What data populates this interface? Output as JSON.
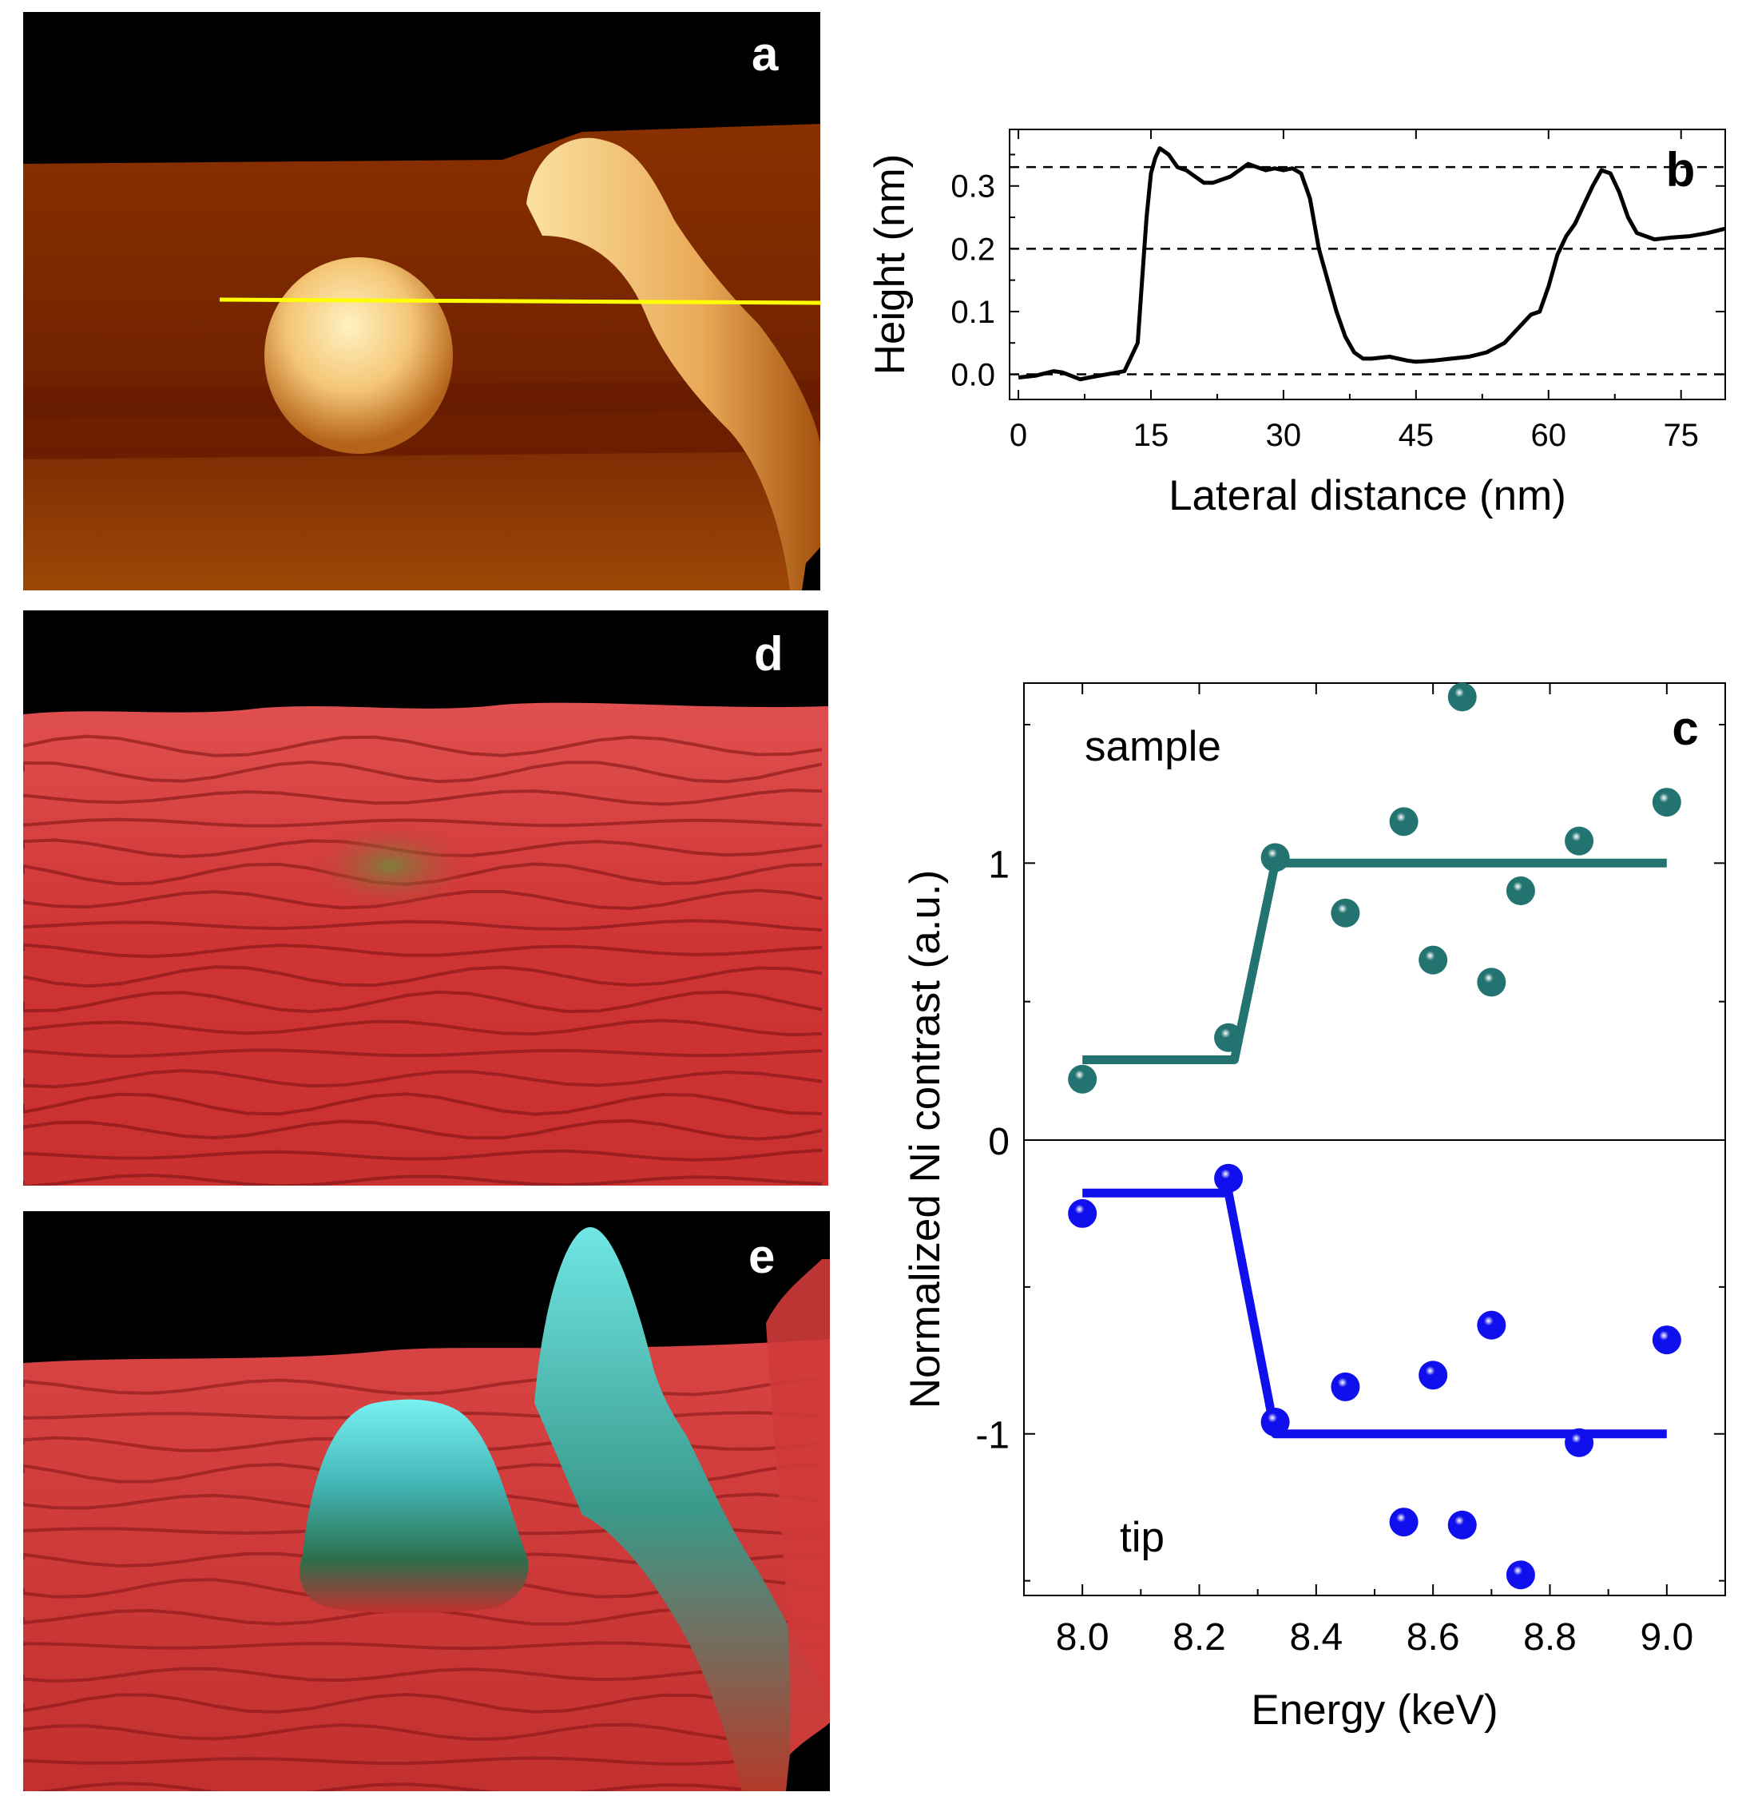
{
  "panels": {
    "a": {
      "letter": "a"
    },
    "b": {
      "letter": "b"
    },
    "c": {
      "letter": "c",
      "top_label": "sample",
      "bottom_label": "tip"
    },
    "d": {
      "letter": "d"
    },
    "e": {
      "letter": "e"
    }
  },
  "colors": {
    "afm_bg": "#7a2300",
    "afm_island": "#f3c873",
    "scan_line": "#ffff00",
    "surface_red": "#d33a3a",
    "surface_cyan": "#52d8d8",
    "sample_series": "#237471",
    "tip_series": "#1010ee"
  },
  "chart_data": [
    {
      "id": "b",
      "type": "line",
      "xlabel": "Lateral distance (nm)",
      "ylabel": "Height (nm)",
      "xlim": [
        -1,
        80
      ],
      "ylim": [
        -0.04,
        0.39
      ],
      "xticks": [
        "0",
        "15",
        "30",
        "45",
        "60",
        "75"
      ],
      "yticks": [
        "0.0",
        "0.1",
        "0.2",
        "0.3"
      ],
      "reference_lines": [
        0.0,
        0.2,
        0.33
      ],
      "series": [
        {
          "x": [
            0,
            2,
            4,
            5,
            7,
            8,
            10,
            12,
            13.5,
            14,
            14.5,
            15,
            15.5,
            16,
            17,
            18,
            19,
            20,
            21,
            22,
            23,
            24,
            25,
            26,
            27,
            28,
            29,
            30,
            31,
            32,
            33,
            34,
            35,
            36,
            37,
            38,
            39,
            40,
            42,
            44,
            45,
            47,
            49,
            51,
            53,
            55,
            57,
            58,
            59,
            60,
            61,
            62,
            63,
            64,
            65,
            66,
            67,
            68,
            69,
            70,
            71,
            72,
            74,
            76,
            78,
            80
          ],
          "y": [
            -0.005,
            -0.002,
            0.005,
            0.003,
            -0.008,
            -0.005,
            0.0,
            0.005,
            0.05,
            0.15,
            0.25,
            0.32,
            0.345,
            0.36,
            0.35,
            0.33,
            0.325,
            0.315,
            0.305,
            0.305,
            0.31,
            0.315,
            0.325,
            0.335,
            0.33,
            0.325,
            0.328,
            0.325,
            0.328,
            0.32,
            0.28,
            0.2,
            0.15,
            0.1,
            0.06,
            0.035,
            0.025,
            0.025,
            0.028,
            0.022,
            0.02,
            0.022,
            0.025,
            0.028,
            0.035,
            0.05,
            0.08,
            0.095,
            0.1,
            0.14,
            0.19,
            0.22,
            0.24,
            0.27,
            0.3,
            0.325,
            0.32,
            0.29,
            0.25,
            0.225,
            0.22,
            0.215,
            0.218,
            0.22,
            0.225,
            0.232
          ]
        }
      ]
    },
    {
      "id": "c",
      "type": "scatter",
      "xlabel": "Energy (keV)",
      "ylabel": "Normalized Ni contrast (a.u.)",
      "xlim": [
        7.9,
        9.1
      ],
      "xticks": [
        "8.0",
        "8.2",
        "8.4",
        "8.6",
        "8.8",
        "9.0"
      ],
      "top": {
        "ylim": [
          0,
          1.65
        ],
        "yticks": [
          "0",
          "1"
        ],
        "points_x": [
          8.0,
          8.25,
          8.33,
          8.45,
          8.55,
          8.6,
          8.65,
          8.7,
          8.75,
          8.85,
          9.0
        ],
        "points_y": [
          0.22,
          0.37,
          1.02,
          0.82,
          1.15,
          0.65,
          1.6,
          0.57,
          0.9,
          1.08,
          1.22
        ],
        "fit_x": [
          8.0,
          8.26,
          8.33,
          9.0
        ],
        "fit_y": [
          0.29,
          0.29,
          1.0,
          1.0
        ]
      },
      "bottom": {
        "ylim": [
          -1.55,
          0
        ],
        "yticks": [
          "-1"
        ],
        "points_x": [
          8.0,
          8.25,
          8.33,
          8.45,
          8.55,
          8.6,
          8.65,
          8.7,
          8.75,
          8.85,
          9.0
        ],
        "points_y": [
          -0.25,
          -0.13,
          -0.96,
          -0.84,
          -1.3,
          -0.8,
          -1.31,
          -0.63,
          -1.48,
          -1.03,
          -0.68
        ],
        "fit_x": [
          8.0,
          8.25,
          8.33,
          9.0
        ],
        "fit_y": [
          -0.18,
          -0.18,
          -1.0,
          -1.0
        ]
      }
    }
  ]
}
